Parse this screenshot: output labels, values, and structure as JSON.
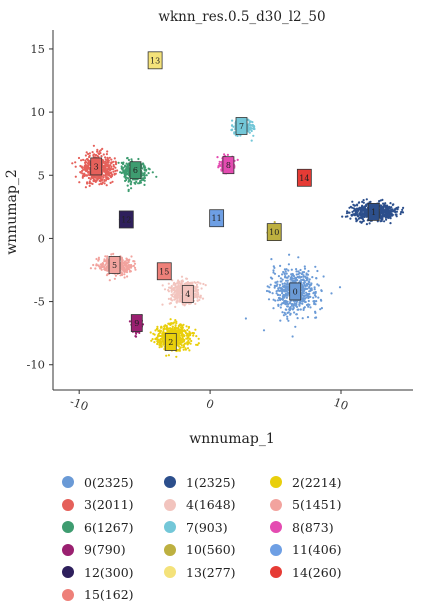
{
  "chart_data": {
    "type": "scatter",
    "title": "wknn_res.0.5_d30_l2_50",
    "xlabel": "wnnumap_1",
    "ylabel": "wnnumap_2",
    "xlim": [
      -12,
      15.5
    ],
    "ylim": [
      -12,
      16.5
    ],
    "xticks": [
      -10,
      0,
      10
    ],
    "xtick_labels": [
      "-10",
      "0",
      "10"
    ],
    "yticks": [
      -10,
      -5,
      0,
      5,
      10,
      15
    ],
    "ytick_labels": [
      "-10",
      "-5",
      "0",
      "5",
      "10",
      "15"
    ],
    "grid": false,
    "legend_position": "bottom",
    "clusters": [
      {
        "id": "0",
        "legend": "0(2325)",
        "color": "#6A9AD6",
        "center": [
          6.5,
          -4.2
        ],
        "spread": [
          1.6,
          1.6
        ],
        "label_pos": [
          6.5,
          -4.2
        ]
      },
      {
        "id": "1",
        "legend": "1(2325)",
        "color": "#2C4F8C",
        "center": [
          12.5,
          2.1
        ],
        "spread": [
          1.5,
          0.6
        ],
        "label_pos": [
          12.5,
          2.1
        ]
      },
      {
        "id": "2",
        "legend": "2(2214)",
        "color": "#E9CF0C",
        "center": [
          -2.8,
          -7.8
        ],
        "spread": [
          1.2,
          0.9
        ],
        "label_pos": [
          -3.0,
          -8.2
        ]
      },
      {
        "id": "3",
        "legend": "3(2011)",
        "color": "#E5605A",
        "center": [
          -8.6,
          5.5
        ],
        "spread": [
          1.1,
          1.0
        ],
        "label_pos": [
          -8.7,
          5.7
        ]
      },
      {
        "id": "4",
        "legend": "4(1648)",
        "color": "#F2C4BE",
        "center": [
          -2.0,
          -4.3
        ],
        "spread": [
          1.0,
          0.9
        ],
        "label_pos": [
          -1.7,
          -4.4
        ]
      },
      {
        "id": "5",
        "legend": "5(1451)",
        "color": "#F2A39E",
        "center": [
          -7.2,
          -2.2
        ],
        "spread": [
          1.1,
          0.6
        ],
        "label_pos": [
          -7.3,
          -2.1
        ]
      },
      {
        "id": "6",
        "legend": "6(1267)",
        "color": "#3E9C70",
        "center": [
          -5.8,
          5.3
        ],
        "spread": [
          0.9,
          0.8
        ],
        "label_pos": [
          -5.7,
          5.4
        ]
      },
      {
        "id": "7",
        "legend": "7(903)",
        "color": "#73C7D8",
        "center": [
          2.5,
          8.8
        ],
        "spread": [
          0.7,
          0.5
        ],
        "label_pos": [
          2.4,
          8.9
        ]
      },
      {
        "id": "8",
        "legend": "8(873)",
        "color": "#E44BB1",
        "center": [
          1.3,
          5.9
        ],
        "spread": [
          0.5,
          0.5
        ],
        "label_pos": [
          1.4,
          5.8
        ]
      },
      {
        "id": "9",
        "legend": "9(790)",
        "color": "#9A2070",
        "center": [
          -5.6,
          -6.9
        ],
        "spread": [
          0.3,
          0.5
        ],
        "label_pos": [
          -5.6,
          -6.7
        ]
      },
      {
        "id": "10",
        "legend": "10(560)",
        "color": "#BDB040",
        "center": [
          4.8,
          0.6
        ],
        "spread": [
          0.3,
          0.4
        ],
        "label_pos": [
          4.9,
          0.5
        ]
      },
      {
        "id": "11",
        "legend": "11(406)",
        "color": "#6E9FE4",
        "center": [
          0.5,
          1.6
        ],
        "spread": [
          0.3,
          0.3
        ],
        "label_pos": [
          0.5,
          1.6
        ]
      },
      {
        "id": "12",
        "legend": "12(300)",
        "color": "#2E1F5C",
        "center": [
          -6.5,
          1.5
        ],
        "spread": [
          0.3,
          0.25
        ],
        "label_pos": [
          -6.4,
          1.5
        ]
      },
      {
        "id": "13",
        "legend": "13(277)",
        "color": "#F4E27A",
        "center": [
          -4.2,
          14.1
        ],
        "spread": [
          0.25,
          0.25
        ],
        "label_pos": [
          -4.2,
          14.1
        ]
      },
      {
        "id": "14",
        "legend": "14(260)",
        "color": "#E63B35",
        "center": [
          7.2,
          4.8
        ],
        "spread": [
          0.25,
          0.35
        ],
        "label_pos": [
          7.2,
          4.8
        ]
      },
      {
        "id": "15",
        "legend": "15(162)",
        "color": "#EE8079",
        "center": [
          -3.6,
          -2.6
        ],
        "spread": [
          0.25,
          0.25
        ],
        "label_pos": [
          -3.5,
          -2.6
        ]
      }
    ]
  }
}
